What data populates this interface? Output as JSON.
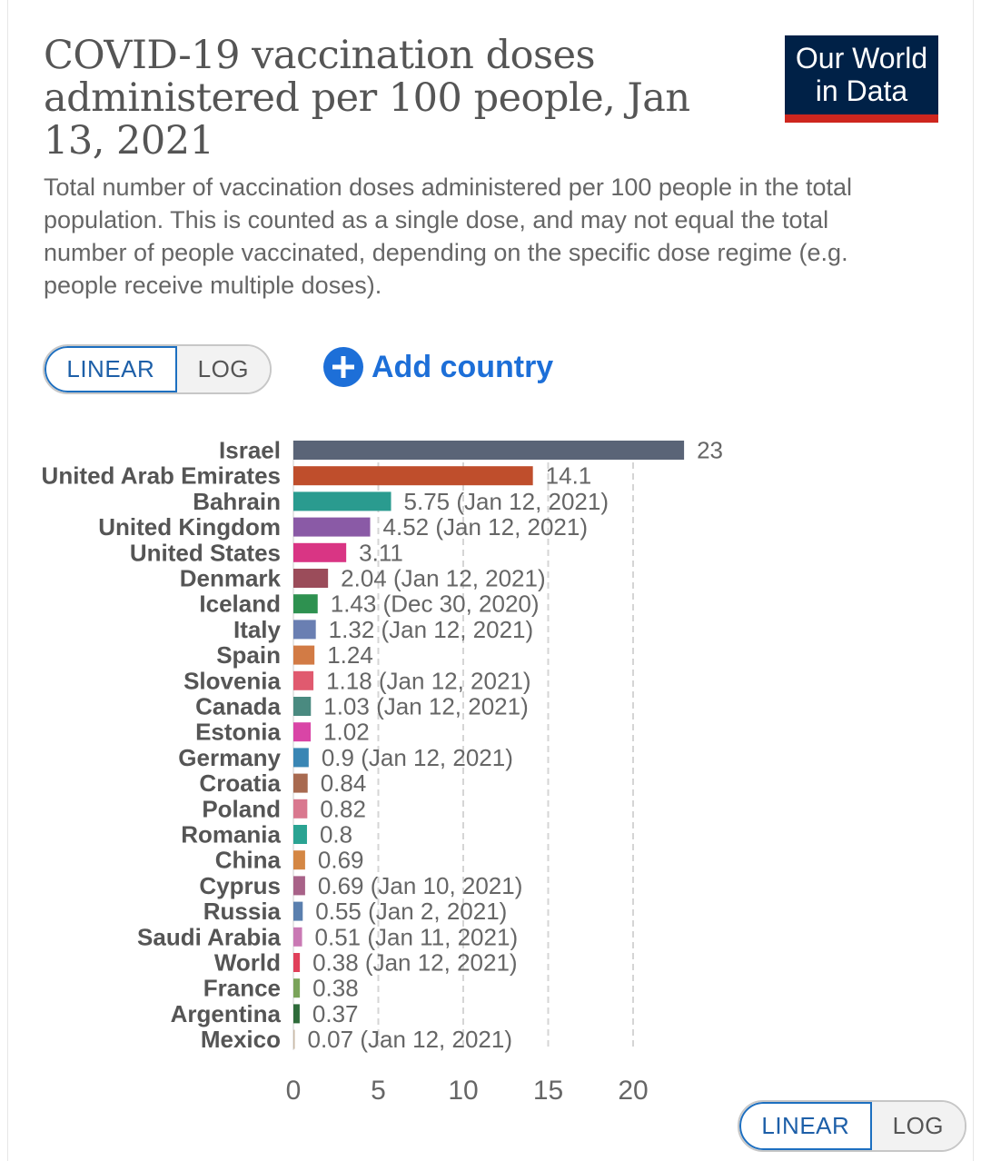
{
  "header": {
    "title": "COVID-19 vaccination doses administered per 100 people, Jan 13, 2021",
    "subtitle": "Total number of vaccination doses administered per 100 people in the total population. This is counted as a single dose, and may not equal the total number of people vaccinated, depending on the specific dose regime (e.g. people receive multiple doses)."
  },
  "logo": {
    "line1": "Our World",
    "line2": "in Data",
    "color": "#002147",
    "accent": "#ce261e"
  },
  "controls": {
    "linear_label": "LINEAR",
    "log_label": "LOG",
    "add_country_label": "Add country",
    "add_icon": "plus-circle-icon",
    "accent_color": "#1d6fd8"
  },
  "chart_data": {
    "type": "bar",
    "orientation": "horizontal",
    "title": "COVID-19 vaccination doses administered per 100 people, Jan 13, 2021",
    "xlabel": "",
    "ylabel": "",
    "xlim": [
      0,
      23
    ],
    "xticks": [
      0,
      5,
      10,
      15,
      20
    ],
    "grid": "vertical dashed",
    "categories": [
      "Israel",
      "United Arab Emirates",
      "Bahrain",
      "United Kingdom",
      "United States",
      "Denmark",
      "Iceland",
      "Italy",
      "Spain",
      "Slovenia",
      "Canada",
      "Estonia",
      "Germany",
      "Croatia",
      "Poland",
      "Romania",
      "China",
      "Cyprus",
      "Russia",
      "Saudi Arabia",
      "World",
      "France",
      "Argentina",
      "Mexico"
    ],
    "values": [
      23,
      14.1,
      5.75,
      4.52,
      3.11,
      2.04,
      1.43,
      1.32,
      1.24,
      1.18,
      1.03,
      1.02,
      0.9,
      0.84,
      0.82,
      0.8,
      0.69,
      0.69,
      0.55,
      0.51,
      0.38,
      0.38,
      0.37,
      0.07
    ],
    "value_labels": [
      "23",
      "14.1",
      "5.75 (Jan 12, 2021)",
      "4.52 (Jan 12, 2021)",
      "3.11",
      "2.04 (Jan 12, 2021)",
      "1.43 (Dec 30, 2020)",
      "1.32 (Jan 12, 2021)",
      "1.24",
      "1.18 (Jan 12, 2021)",
      "1.03 (Jan 12, 2021)",
      "1.02",
      "0.9 (Jan 12, 2021)",
      "0.84",
      "0.82",
      "0.8",
      "0.69",
      "0.69 (Jan 10, 2021)",
      "0.55 (Jan 2, 2021)",
      "0.51 (Jan 11, 2021)",
      "0.38 (Jan 12, 2021)",
      "0.38",
      "0.37",
      "0.07 (Jan 12, 2021)"
    ],
    "colors": [
      "#5a6477",
      "#bf4e2c",
      "#2a9b8f",
      "#8a5aa6",
      "#d93584",
      "#9b4c5a",
      "#2e9150",
      "#6a7fb2",
      "#d27b45",
      "#e05a6f",
      "#4a8a80",
      "#d945a6",
      "#3a86b4",
      "#a86a50",
      "#d9788f",
      "#2aa392",
      "#d48744",
      "#a86288",
      "#5a7fae",
      "#c979b4",
      "#e0405a",
      "#7aa35a",
      "#2e6b3a",
      "#c9b9a6"
    ]
  }
}
